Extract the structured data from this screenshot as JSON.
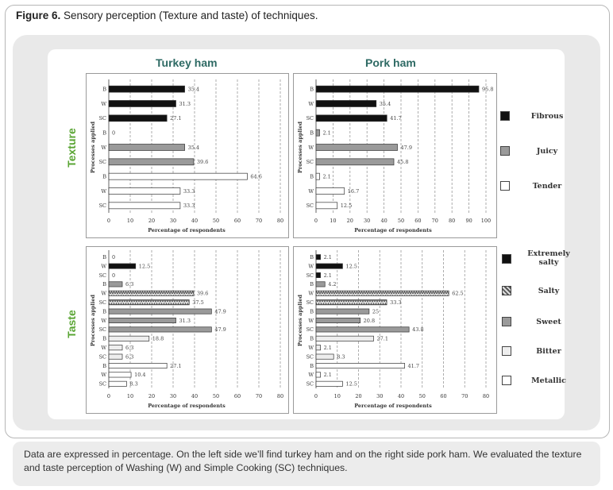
{
  "caption": {
    "label": "Figure 6.",
    "text": " Sensory perception (Texture and taste) of techniques."
  },
  "columns": [
    "Turkey ham",
    "Pork ham"
  ],
  "rows": [
    "Texture",
    "Taste"
  ],
  "footnote": "Data are expressed in percentage. On the left side we’ll find turkey ham and on the right side pork ham. We evaluated the texture and taste perception of Washing (W) and Simple Cooking (SC) techniques.",
  "texture_legend": [
    {
      "name": "Fibrous",
      "color": "#111111",
      "pattern": "solid"
    },
    {
      "name": "Juicy",
      "color": "#9a9a9a",
      "pattern": "solid"
    },
    {
      "name": "Tender",
      "color": "#ffffff",
      "pattern": "solid"
    }
  ],
  "taste_legend": [
    {
      "name": "Extremely salty",
      "color": "#111111",
      "pattern": "solid"
    },
    {
      "name": "Salty",
      "color": "#bbbbbb",
      "pattern": "zigzag"
    },
    {
      "name": "Sweet",
      "color": "#9a9a9a",
      "pattern": "solid"
    },
    {
      "name": "Bitter",
      "color": "#eeeeee",
      "pattern": "solid"
    },
    {
      "name": "Metallic",
      "color": "#ffffff",
      "pattern": "solid"
    }
  ],
  "chart_data": [
    {
      "type": "bar",
      "orientation": "horizontal",
      "panel": "Turkey ham - Texture",
      "xlabel": "Percentage of respondents",
      "ylabel": "Processes applied",
      "xlim": [
        0,
        80
      ],
      "xticks": [
        0,
        10,
        20,
        30,
        40,
        50,
        60,
        70,
        80
      ],
      "categories": [
        "B",
        "W",
        "SC",
        "B",
        "W",
        "SC",
        "B",
        "W",
        "SC"
      ],
      "series_index": [
        0,
        0,
        0,
        1,
        1,
        1,
        2,
        2,
        2
      ],
      "values": [
        35.4,
        31.3,
        27.1,
        0,
        35.4,
        39.6,
        64.6,
        33.3,
        33.3
      ],
      "labels": [
        "35.4",
        "31.3",
        "27.1",
        "0",
        "35.4",
        "39.6",
        "64.6",
        "33.3",
        "33.3"
      ]
    },
    {
      "type": "bar",
      "orientation": "horizontal",
      "panel": "Pork ham - Texture",
      "xlabel": "Percentage of respondents",
      "ylabel": "Processes applied",
      "xlim": [
        0,
        100
      ],
      "xticks": [
        0,
        10,
        20,
        30,
        40,
        50,
        60,
        70,
        80,
        90,
        100
      ],
      "categories": [
        "B",
        "W",
        "SC",
        "B",
        "W",
        "SC",
        "B",
        "W",
        "SC"
      ],
      "series_index": [
        0,
        0,
        0,
        1,
        1,
        1,
        2,
        2,
        2
      ],
      "values": [
        95.8,
        35.4,
        41.7,
        2.1,
        47.9,
        45.8,
        2.1,
        16.7,
        12.5
      ],
      "labels": [
        "95.8",
        "35.4",
        "41.7",
        "2.1",
        "47.9",
        "45.8",
        "2.1",
        "16.7",
        "12.5"
      ]
    },
    {
      "type": "bar",
      "orientation": "horizontal",
      "panel": "Turkey ham - Taste",
      "xlabel": "Percentage of respondents",
      "ylabel": "Processes applied",
      "xlim": [
        0,
        80
      ],
      "xticks": [
        0,
        10,
        20,
        30,
        40,
        50,
        60,
        70,
        80
      ],
      "categories": [
        "B",
        "W",
        "SC",
        "B",
        "W",
        "SC",
        "B",
        "W",
        "SC",
        "B",
        "W",
        "SC",
        "B",
        "W",
        "SC"
      ],
      "series_index": [
        0,
        0,
        0,
        2,
        1,
        1,
        2,
        2,
        2,
        3,
        3,
        3,
        4,
        4,
        4
      ],
      "values": [
        0,
        12.5,
        0,
        6.3,
        39.6,
        37.5,
        47.9,
        31.3,
        47.9,
        18.8,
        6.3,
        6.3,
        27.1,
        10.4,
        8.3
      ],
      "labels": [
        "0",
        "12.5",
        "0",
        "6.3",
        "39.6",
        "37.5",
        "47.9",
        "31.3",
        "47.9",
        "18.8",
        "6.3",
        "6.3",
        "27.1",
        "10.4",
        "8.3"
      ]
    },
    {
      "type": "bar",
      "orientation": "horizontal",
      "panel": "Pork ham - Taste",
      "xlabel": "Percentage of respondents",
      "ylabel": "Processes applied",
      "xlim": [
        0,
        80
      ],
      "xticks": [
        0,
        10,
        20,
        30,
        40,
        50,
        60,
        70,
        80
      ],
      "categories": [
        "B",
        "W",
        "SC",
        "B",
        "W",
        "SC",
        "B",
        "W",
        "SC",
        "B",
        "W",
        "SC",
        "B",
        "W",
        "SC"
      ],
      "series_index": [
        0,
        0,
        0,
        2,
        1,
        1,
        2,
        2,
        2,
        3,
        3,
        3,
        4,
        4,
        4
      ],
      "values": [
        2.1,
        12.5,
        2.1,
        4.2,
        62.5,
        33.3,
        25,
        20.8,
        43.8,
        27.1,
        2.1,
        8.3,
        41.7,
        2.1,
        12.5
      ],
      "labels": [
        "2.1",
        "12.5",
        "2.1",
        "4.2",
        "62.5",
        "33.3",
        "25",
        "20.8",
        "43.8",
        "27.1",
        "2.1",
        "8.3",
        "41.7",
        "2.1",
        "12.5"
      ]
    }
  ]
}
